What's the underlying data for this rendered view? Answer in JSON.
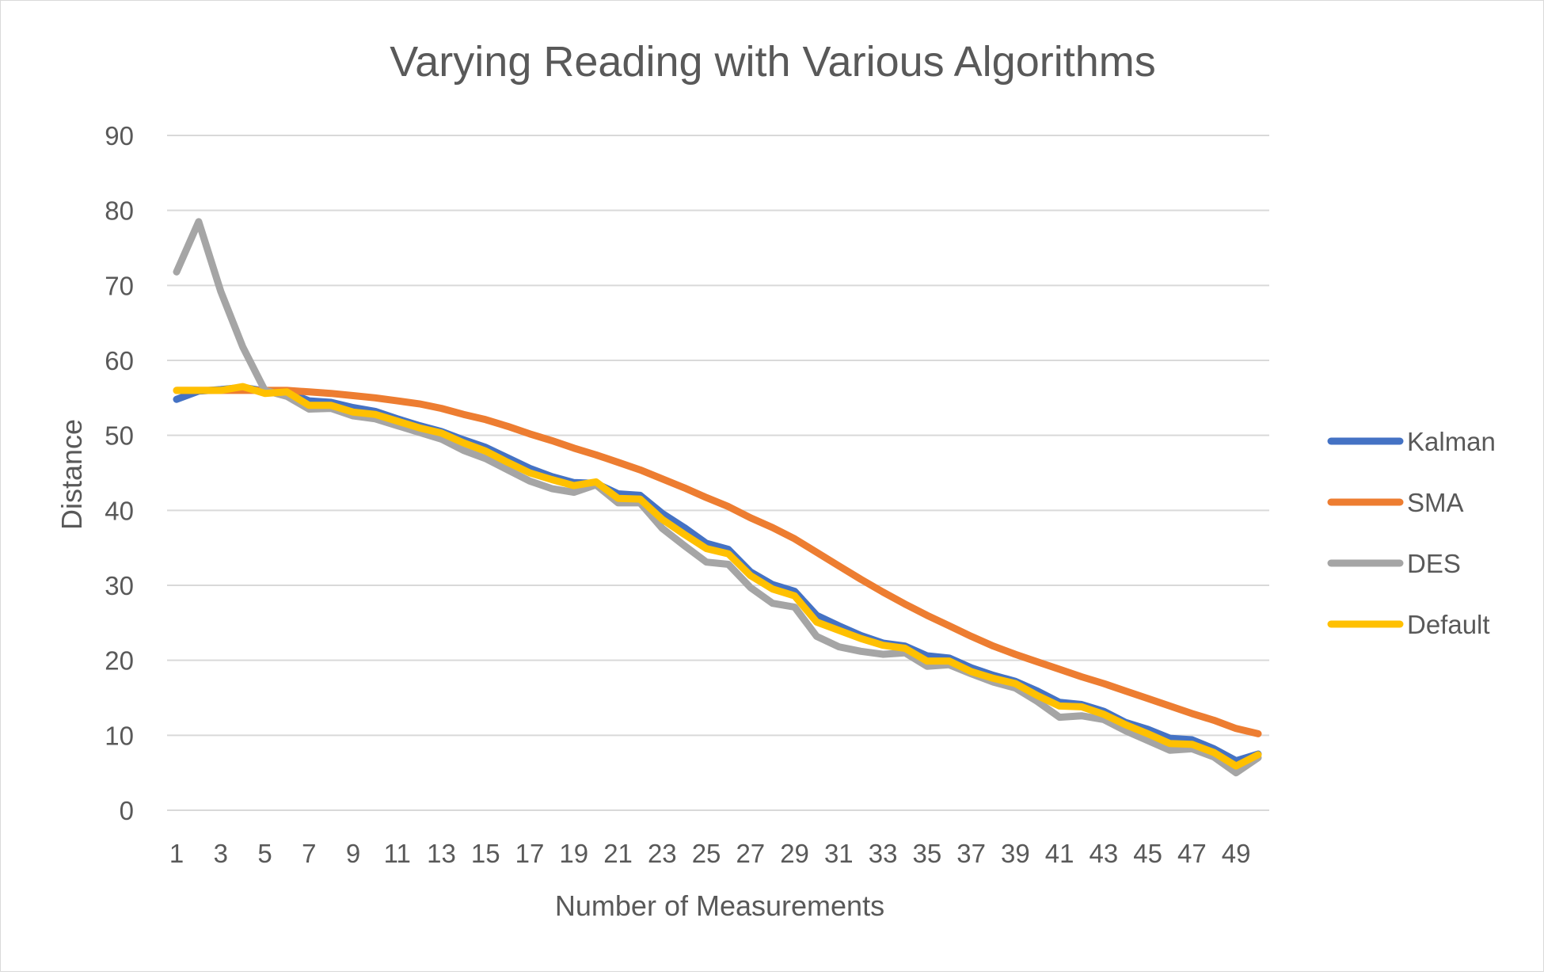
{
  "chart_data": {
    "type": "line",
    "title": "Varying Reading with Various Algorithms",
    "xlabel": "Number of Measurements",
    "ylabel": "Distance",
    "ylim": [
      0,
      90
    ],
    "yticks": [
      0,
      10,
      20,
      30,
      40,
      50,
      60,
      70,
      80,
      90
    ],
    "x": [
      1,
      2,
      3,
      4,
      5,
      6,
      7,
      8,
      9,
      10,
      11,
      12,
      13,
      14,
      15,
      16,
      17,
      18,
      19,
      20,
      21,
      22,
      23,
      24,
      25,
      26,
      27,
      28,
      29,
      30,
      31,
      32,
      33,
      34,
      35,
      36,
      37,
      38,
      39,
      40,
      41,
      42,
      43,
      44,
      45,
      46,
      47,
      48,
      49,
      50
    ],
    "xtick_labels": [
      "1",
      "3",
      "5",
      "7",
      "9",
      "11",
      "13",
      "15",
      "17",
      "19",
      "21",
      "23",
      "25",
      "27",
      "29",
      "31",
      "33",
      "35",
      "37",
      "39",
      "41",
      "43",
      "45",
      "47",
      "49"
    ],
    "grid": true,
    "legend_position": "right",
    "series": [
      {
        "name": "Kalman",
        "color": "#4472c4",
        "values": [
          54.8,
          55.9,
          56.1,
          56.4,
          55.9,
          55.8,
          54.6,
          54.4,
          53.7,
          53.2,
          52.2,
          51.3,
          50.5,
          49.4,
          48.4,
          47.0,
          45.6,
          44.5,
          43.7,
          43.6,
          42.2,
          42.0,
          39.6,
          37.7,
          35.6,
          34.8,
          31.8,
          30.1,
          29.2,
          26.0,
          24.6,
          23.3,
          22.3,
          21.9,
          20.6,
          20.3,
          19.0,
          18.0,
          17.2,
          15.9,
          14.4,
          14.1,
          13.2,
          11.7,
          10.8,
          9.6,
          9.4,
          8.2,
          6.6,
          7.5
        ]
      },
      {
        "name": "SMA",
        "color": "#ed7d31",
        "values": [
          56.0,
          56.0,
          56.0,
          56.0,
          56.0,
          56.0,
          55.8,
          55.6,
          55.3,
          55.0,
          54.6,
          54.2,
          53.6,
          52.8,
          52.1,
          51.2,
          50.2,
          49.3,
          48.3,
          47.4,
          46.4,
          45.4,
          44.2,
          43.0,
          41.7,
          40.5,
          39.0,
          37.7,
          36.2,
          34.4,
          32.6,
          30.8,
          29.1,
          27.5,
          26.0,
          24.6,
          23.2,
          21.9,
          20.8,
          19.8,
          18.8,
          17.8,
          16.9,
          15.9,
          14.9,
          13.9,
          12.9,
          12.0,
          10.9,
          10.2
        ]
      },
      {
        "name": "DES",
        "color": "#a5a5a5",
        "values": [
          71.8,
          78.5,
          69.2,
          61.8,
          56.0,
          55.2,
          53.5,
          53.6,
          52.6,
          52.2,
          51.3,
          50.4,
          49.5,
          48.0,
          46.9,
          45.4,
          43.9,
          42.9,
          42.4,
          43.4,
          41.0,
          41.0,
          37.6,
          35.3,
          33.1,
          32.8,
          29.7,
          27.6,
          27.1,
          23.2,
          21.8,
          21.2,
          20.8,
          21.0,
          19.2,
          19.4,
          18.2,
          17.1,
          16.3,
          14.5,
          12.4,
          12.6,
          12.1,
          10.6,
          9.3,
          8.0,
          8.2,
          7.1,
          5.0,
          7.0
        ]
      },
      {
        "name": "Default",
        "color": "#ffc000",
        "values": [
          56.0,
          56.0,
          56.0,
          56.5,
          55.6,
          55.8,
          54.0,
          54.0,
          53.1,
          52.8,
          51.9,
          51.0,
          50.3,
          49.0,
          47.9,
          46.4,
          45.0,
          44.1,
          43.3,
          43.8,
          41.6,
          41.5,
          38.8,
          36.8,
          34.9,
          34.2,
          31.3,
          29.5,
          28.6,
          25.1,
          24.0,
          22.9,
          22.0,
          21.6,
          19.9,
          19.9,
          18.5,
          17.6,
          16.9,
          15.3,
          13.9,
          13.8,
          12.8,
          11.4,
          10.2,
          8.9,
          8.8,
          7.7,
          5.9,
          7.4
        ]
      }
    ]
  }
}
